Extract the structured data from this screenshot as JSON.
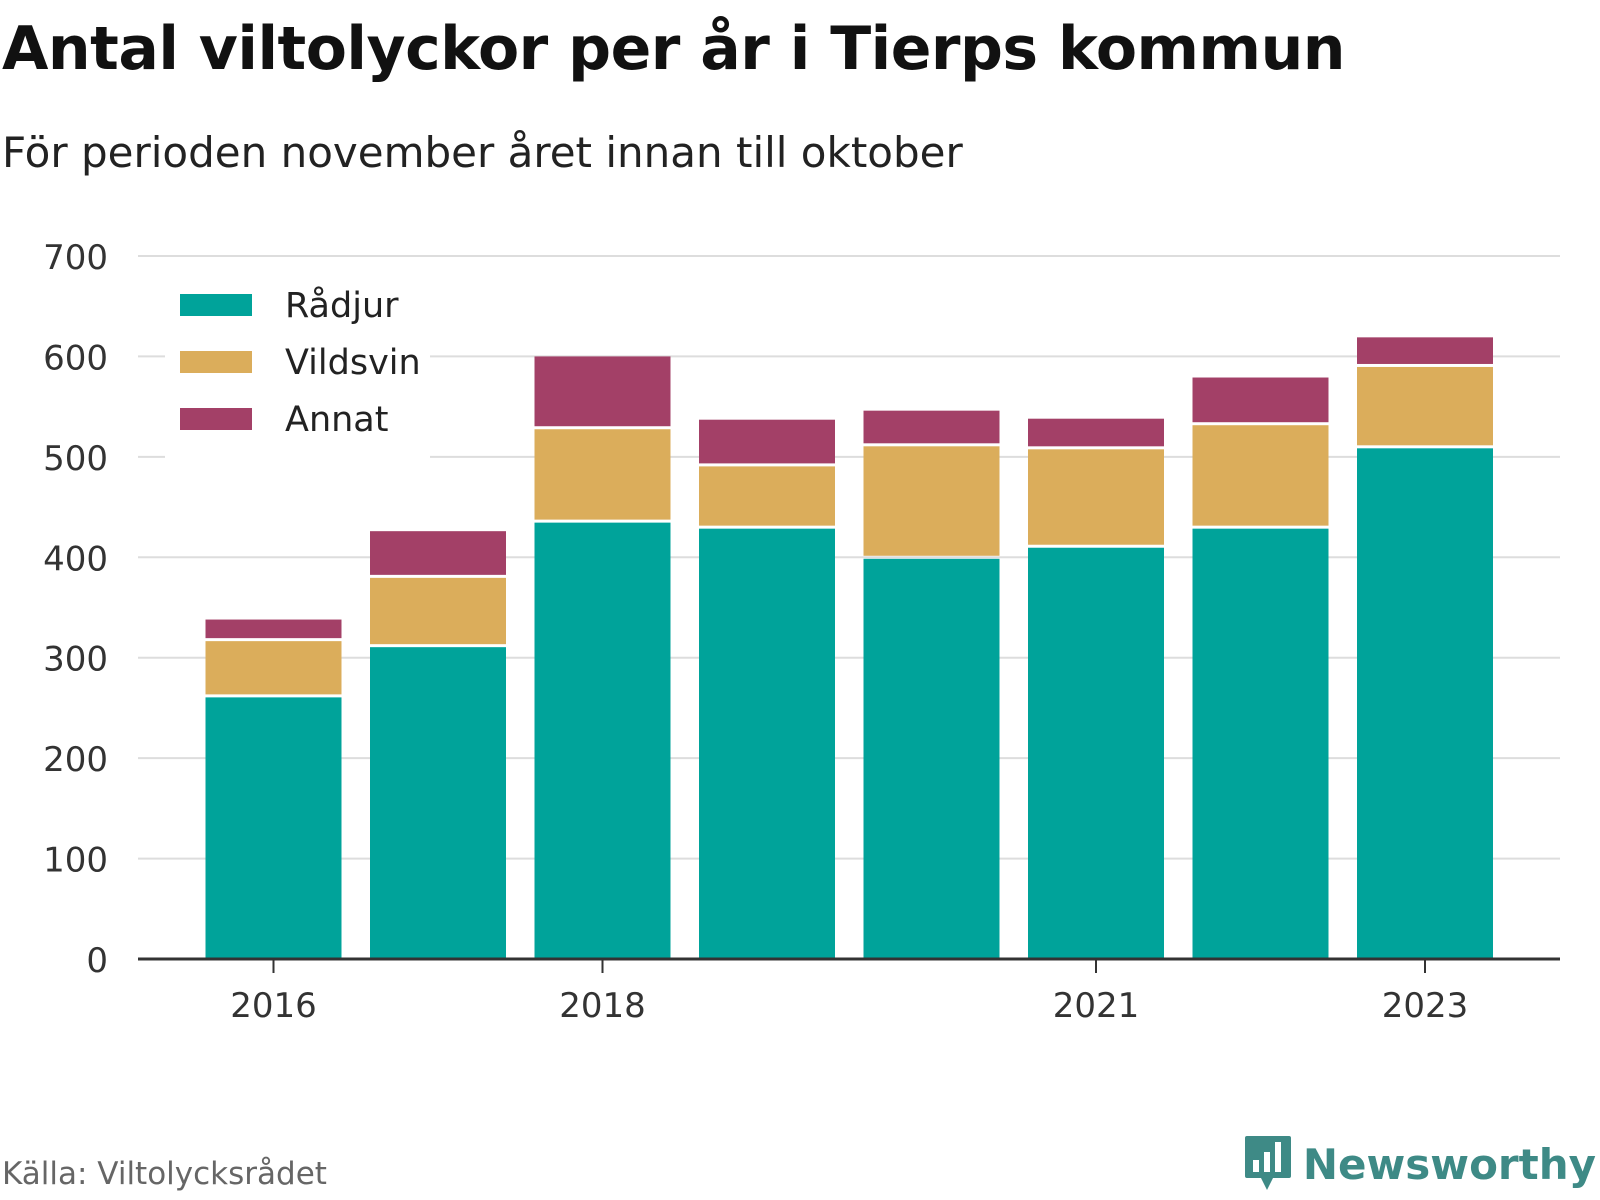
{
  "header": {
    "title": "Antal viltolyckor per år i Tierps kommun",
    "subtitle": "För perioden november året innan till oktober"
  },
  "footer": {
    "source": "Källa: Viltolycksrådet",
    "brand": "Newsworthy"
  },
  "colors": {
    "radjur": "#00a39a",
    "vildsvin": "#dbad5b",
    "annat": "#a34067",
    "brand": "#3e8a86"
  },
  "chart_data": {
    "type": "bar",
    "stacked": true,
    "title": "Antal viltolyckor per år i Tierps kommun",
    "subtitle": "För perioden november året innan till oktober",
    "categories": [
      "2016",
      "2017",
      "2018",
      "2019",
      "2020",
      "2021",
      "2022",
      "2023"
    ],
    "x_tick_labels": [
      "2016",
      "2018",
      "2021",
      "2023"
    ],
    "series": [
      {
        "name": "Rådjur",
        "color": "#00a39a",
        "values": [
          262,
          312,
          436,
          430,
          400,
          411,
          430,
          510
        ]
      },
      {
        "name": "Vildsvin",
        "color": "#dbad5b",
        "values": [
          56,
          69,
          93,
          62,
          112,
          98,
          103,
          81
        ]
      },
      {
        "name": "Annat",
        "color": "#a34067",
        "values": [
          20,
          45,
          71,
          45,
          34,
          29,
          46,
          28
        ]
      }
    ],
    "y_ticks": [
      0,
      100,
      200,
      300,
      400,
      500,
      600,
      700
    ],
    "ylim": [
      0,
      700
    ],
    "xlabel": "",
    "ylabel": "",
    "grid": true,
    "legend_position": "top-left"
  }
}
